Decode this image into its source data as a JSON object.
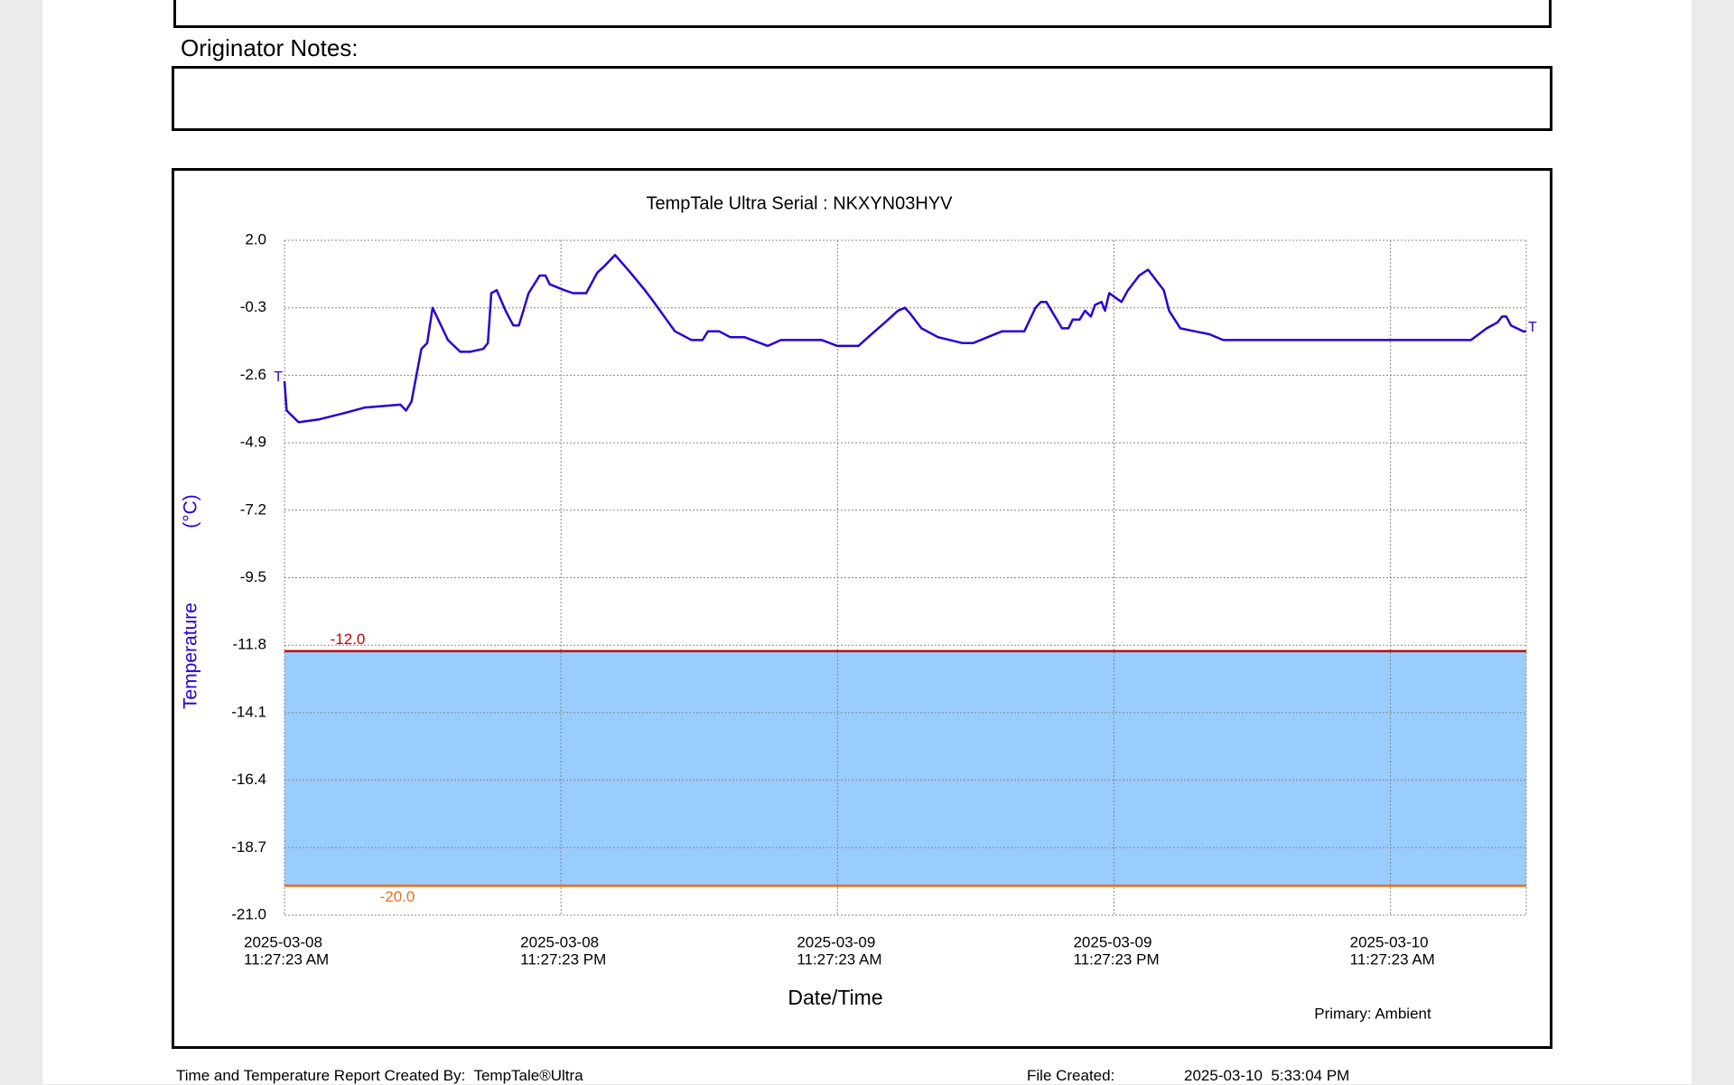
{
  "originator_notes_label": "Originator Notes:",
  "footer": {
    "created_by_label": "Time and Temperature Report Created By:",
    "created_by": "TempTale®Ultra",
    "file_created_label": "File Created:",
    "file_created": "2025-03-10  5:33:04 PM"
  },
  "chart_data": {
    "type": "line",
    "title": "TempTale Ultra  Serial : NKXYN03HYV",
    "xlabel": "Date/Time",
    "ylabel": "Temperature",
    "yunit": "(°C)",
    "note": "Primary: Ambient",
    "start_marker": "T",
    "end_marker": "T",
    "color": "#2a00d4",
    "grid": true,
    "band_color": "#99ccff",
    "limits": [
      {
        "value": -12.0,
        "label": "-12.0",
        "color": "#c00000"
      },
      {
        "value": -20.0,
        "label": "-20.0",
        "color": "#e8701a"
      }
    ],
    "xlim": [
      "2025-03-08 11:27:23",
      "2025-03-10 17:21"
    ],
    "xticks": [
      {
        "value": "2025-03-08 11:27:23",
        "label": [
          "2025-03-08",
          "11:27:23 AM"
        ]
      },
      {
        "value": "2025-03-08 23:27:23",
        "label": [
          "2025-03-08",
          "11:27:23 PM"
        ]
      },
      {
        "value": "2025-03-09 11:27:23",
        "label": [
          "2025-03-09",
          "11:27:23 AM"
        ]
      },
      {
        "value": "2025-03-09 23:27:23",
        "label": [
          "2025-03-09",
          "11:27:23 PM"
        ]
      },
      {
        "value": "2025-03-10 11:27:23",
        "label": [
          "2025-03-10",
          "11:27:23 AM"
        ]
      }
    ],
    "ylim": [
      -21.0,
      2.0
    ],
    "yticks": [
      {
        "value": 2.0,
        "label": "2.0"
      },
      -0.3,
      -2.6,
      -4.9,
      -7.2,
      -9.5,
      -11.8,
      -14.1,
      -16.4,
      -18.7,
      {
        "value": -21.0,
        "label": "-21.0"
      }
    ],
    "x": [
      "2025-03-08 11:27:23",
      "2025-03-08 11:33",
      "2025-03-08 12:04",
      "2025-03-08 12:59",
      "2025-03-08 14:00",
      "2025-03-08 14:57",
      "2025-03-08 16:29",
      "2025-03-08 16:44",
      "2025-03-08 16:58",
      "2025-03-08 17:24",
      "2025-03-08 17:39",
      "2025-03-08 17:53",
      "2025-03-08 18:33",
      "2025-03-08 19:05",
      "2025-03-08 19:31",
      "2025-03-08 20:05",
      "2025-03-08 20:17",
      "2025-03-08 20:26",
      "2025-03-08 20:40",
      "2025-03-08 21:03",
      "2025-03-08 21:23",
      "2025-03-08 21:38",
      "2025-03-08 22:03",
      "2025-03-08 22:32",
      "2025-03-08 22:47",
      "2025-03-08 22:58",
      "2025-03-08 23:36",
      "2025-03-08 23:59",
      "2025-03-09 00:33",
      "2025-03-09 01:02",
      "2025-03-09 01:19",
      "2025-03-09 01:48",
      "2025-03-09 02:28",
      "2025-03-09 03:06",
      "2025-03-09 03:29",
      "2025-03-09 04:24",
      "2025-03-09 05:07",
      "2025-03-09 05:36",
      "2025-03-09 05:50",
      "2025-03-09 06:19",
      "2025-03-09 06:48",
      "2025-03-09 07:25",
      "2025-03-09 08:26",
      "2025-03-09 09:00",
      "2025-03-09 10:47",
      "2025-03-09 11:27",
      "2025-03-09 12:22",
      "2025-03-09 12:56",
      "2025-03-09 13:31",
      "2025-03-09 14:05",
      "2025-03-09 14:23",
      "2025-03-09 14:37",
      "2025-03-09 15:06",
      "2025-03-09 15:49",
      "2025-03-09 16:52",
      "2025-03-09 17:21",
      "2025-03-09 18:36",
      "2025-03-09 19:34",
      "2025-03-09 20:03",
      "2025-03-09 20:17",
      "2025-03-09 20:31",
      "2025-03-09 21:12",
      "2025-03-09 21:29",
      "2025-03-09 21:40",
      "2025-03-09 21:58",
      "2025-03-09 22:12",
      "2025-03-09 22:27",
      "2025-03-09 22:38",
      "2025-03-09 22:55",
      "2025-03-09 23:04",
      "2025-03-09 23:15",
      "2025-03-09 23:47",
      "2025-03-10 00:04",
      "2025-03-10 00:33",
      "2025-03-10 00:56",
      "2025-03-10 01:37",
      "2025-03-10 01:51",
      "2025-03-10 02:20",
      "2025-03-10 02:57",
      "2025-03-10 03:35",
      "2025-03-10 04:12",
      "2025-03-10 14:57",
      "2025-03-10 15:38",
      "2025-03-10 16:06",
      "2025-03-10 16:18",
      "2025-03-10 16:29",
      "2025-03-10 16:41",
      "2025-03-10 17:13",
      "2025-03-10 17:21"
    ],
    "values": [
      -2.8,
      -3.8,
      -4.2,
      -4.1,
      -3.9,
      -3.7,
      -3.6,
      -3.8,
      -3.5,
      -1.7,
      -1.5,
      -0.3,
      -1.4,
      -1.8,
      -1.8,
      -1.7,
      -1.5,
      0.2,
      0.3,
      -0.4,
      -0.9,
      -0.9,
      0.2,
      0.8,
      0.8,
      0.5,
      0.3,
      0.2,
      0.2,
      0.9,
      1.1,
      1.5,
      0.9,
      0.3,
      -0.1,
      -1.1,
      -1.4,
      -1.4,
      -1.1,
      -1.1,
      -1.3,
      -1.3,
      -1.6,
      -1.4,
      -1.4,
      -1.6,
      -1.6,
      -1.2,
      -0.8,
      -0.4,
      -0.3,
      -0.5,
      -1.0,
      -1.3,
      -1.5,
      -1.5,
      -1.1,
      -1.1,
      -0.3,
      -0.1,
      -0.1,
      -1.0,
      -1.0,
      -0.7,
      -0.7,
      -0.4,
      -0.6,
      -0.2,
      -0.1,
      -0.4,
      0.2,
      -0.1,
      0.3,
      0.8,
      1.0,
      0.3,
      -0.4,
      -1.0,
      -1.1,
      -1.2,
      -1.4,
      -1.4,
      -1.0,
      -0.8,
      -0.6,
      -0.6,
      -0.9,
      -1.1,
      -1.1
    ]
  }
}
